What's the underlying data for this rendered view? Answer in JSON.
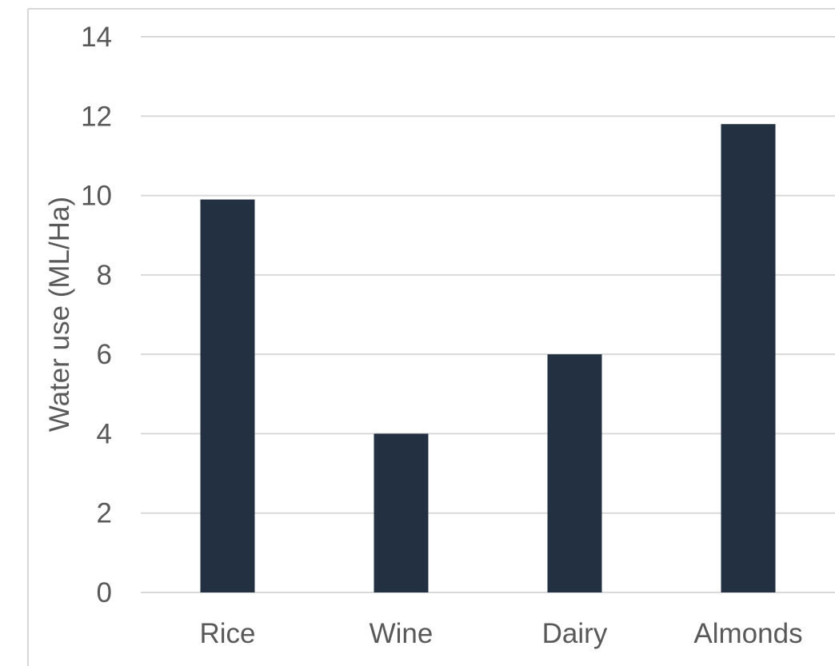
{
  "chart_data": {
    "type": "bar",
    "title": "",
    "xlabel": "",
    "ylabel": "Water use (ML/Ha)",
    "categories": [
      "Rice",
      "Wine",
      "Dairy",
      "Almonds"
    ],
    "values": [
      9.9,
      4.0,
      6.0,
      11.8
    ],
    "ylim": [
      0,
      14
    ],
    "yticks": [
      "0",
      "2",
      "4",
      "6",
      "8",
      "10",
      "12",
      "14"
    ],
    "grid": true,
    "legend": "none",
    "colors": {
      "bar": "#223041",
      "grid": "#d9d9d9",
      "text": "#595959",
      "frame": "#d9d9d9"
    }
  }
}
